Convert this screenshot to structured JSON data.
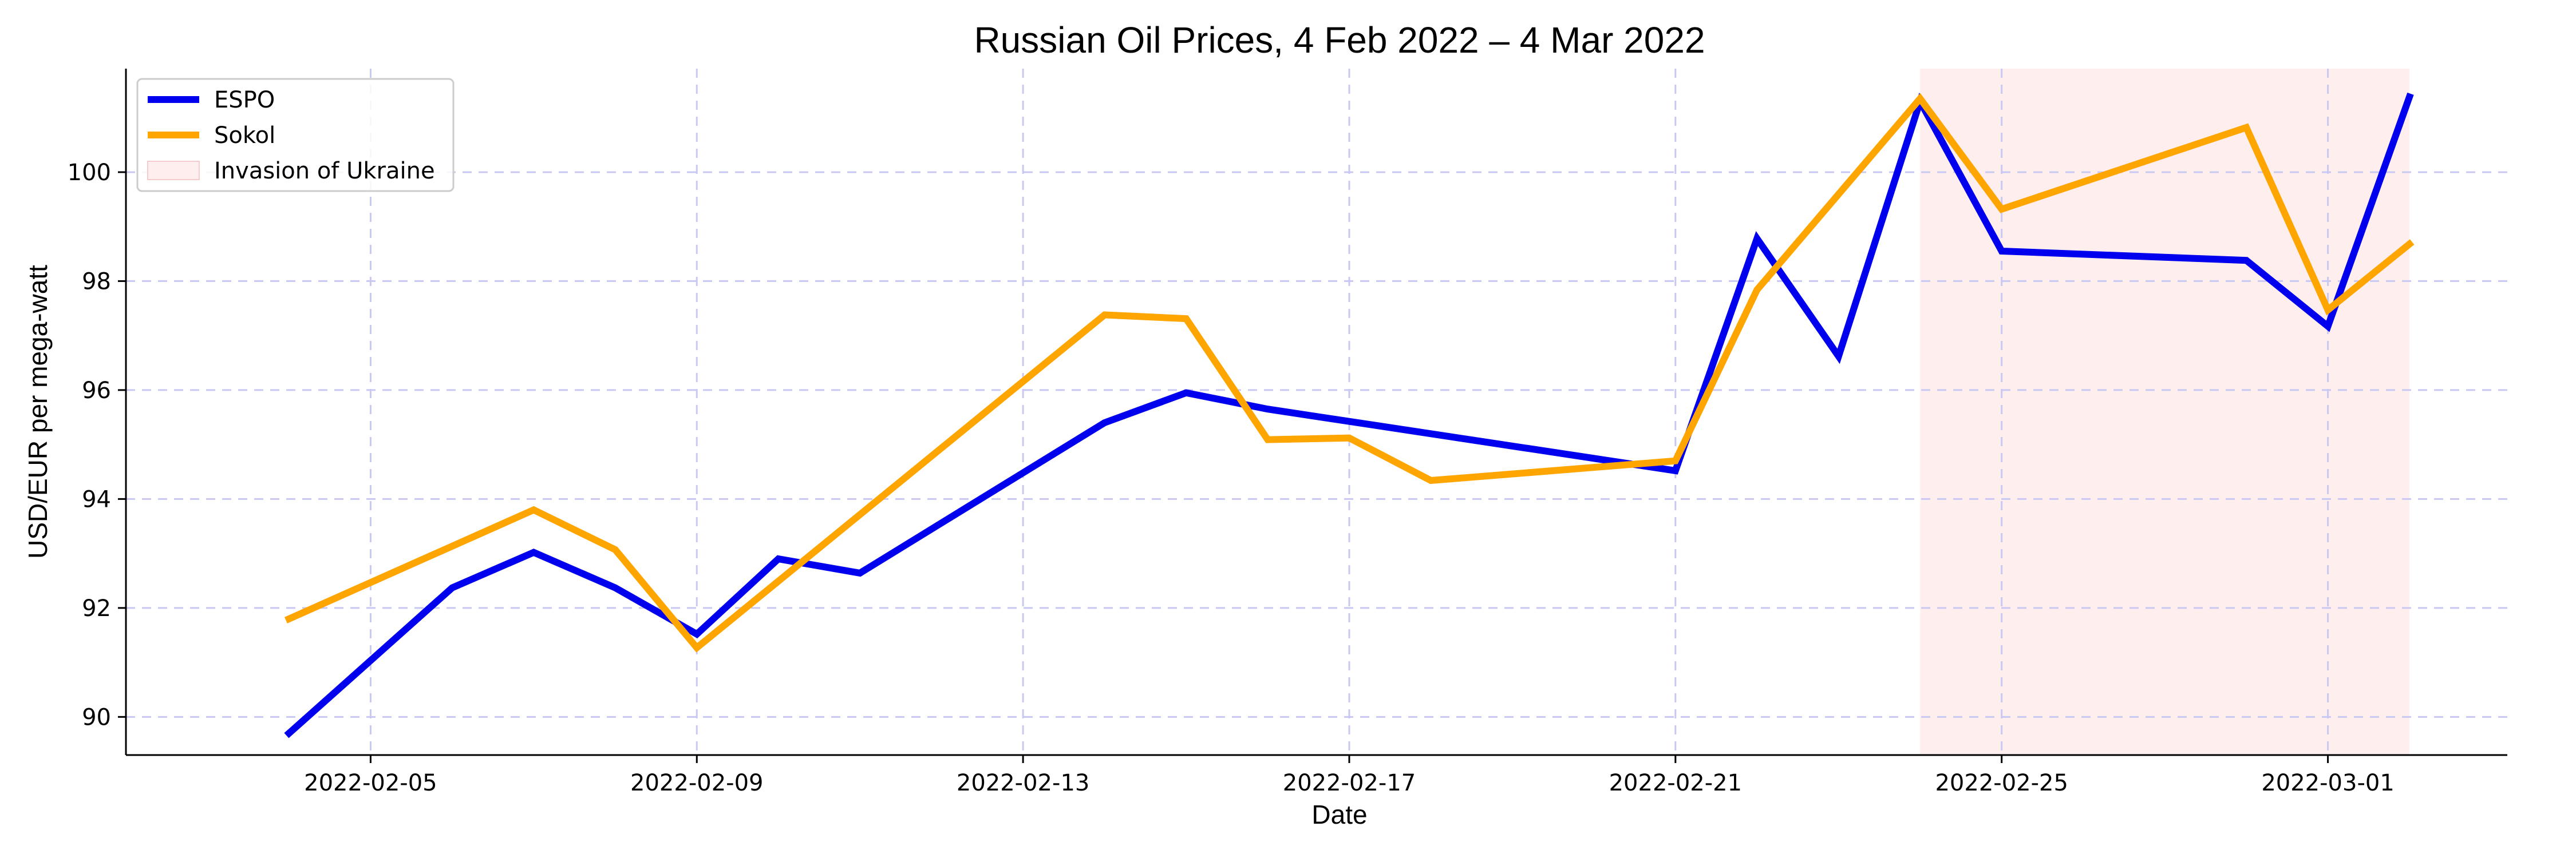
{
  "chart_data": {
    "type": "line",
    "title": "Russian Oil Prices, 4 Feb 2022 – 4 Mar 2022",
    "xlabel": "Date",
    "ylabel": "USD/EUR per mega-watt",
    "xlim": [
      "2022-02-04",
      "2022-03-02"
    ],
    "ylim": [
      89.3,
      101.9
    ],
    "x_ticks": [
      "2022-02-05",
      "2022-02-09",
      "2022-02-13",
      "2022-02-17",
      "2022-02-21",
      "2022-02-25",
      "2022-03-01"
    ],
    "y_ticks": [
      90,
      92,
      94,
      96,
      98,
      100
    ],
    "grid": true,
    "legend_position": "top-left",
    "shaded_region": {
      "label": "Invasion of Ukraine",
      "start": "2022-02-24",
      "end": "2022-03-02",
      "color": "#ffeeee"
    },
    "series": [
      {
        "name": "ESPO",
        "color": "#0000ee",
        "points": [
          {
            "x": "2022-02-04",
            "y": 89.7
          },
          {
            "x": "2022-02-06",
            "y": 92.37
          },
          {
            "x": "2022-02-07",
            "y": 93.02
          },
          {
            "x": "2022-02-08",
            "y": 92.37
          },
          {
            "x": "2022-02-09",
            "y": 91.52
          },
          {
            "x": "2022-02-10",
            "y": 92.9
          },
          {
            "x": "2022-02-11",
            "y": 92.64
          },
          {
            "x": "2022-02-14",
            "y": 95.4
          },
          {
            "x": "2022-02-15",
            "y": 95.95
          },
          {
            "x": "2022-02-16",
            "y": 95.65
          },
          {
            "x": "2022-02-21",
            "y": 94.52
          },
          {
            "x": "2022-02-22",
            "y": 98.78
          },
          {
            "x": "2022-02-23",
            "y": 96.62
          },
          {
            "x": "2022-02-24",
            "y": 101.3
          },
          {
            "x": "2022-02-25",
            "y": 98.55
          },
          {
            "x": "2022-02-28",
            "y": 98.38
          },
          {
            "x": "2022-03-01",
            "y": 97.17
          },
          {
            "x": "2022-03-02",
            "y": 101.38
          }
        ]
      },
      {
        "name": "Sokol",
        "color": "#ffa500",
        "points": [
          {
            "x": "2022-02-04",
            "y": 91.8
          },
          {
            "x": "2022-02-07",
            "y": 93.8
          },
          {
            "x": "2022-02-08",
            "y": 93.07
          },
          {
            "x": "2022-02-09",
            "y": 91.27
          },
          {
            "x": "2022-02-14",
            "y": 97.38
          },
          {
            "x": "2022-02-15",
            "y": 97.31
          },
          {
            "x": "2022-02-16",
            "y": 95.09
          },
          {
            "x": "2022-02-17",
            "y": 95.12
          },
          {
            "x": "2022-02-18",
            "y": 94.34
          },
          {
            "x": "2022-02-21",
            "y": 94.7
          },
          {
            "x": "2022-02-22",
            "y": 97.84
          },
          {
            "x": "2022-02-24",
            "y": 101.35
          },
          {
            "x": "2022-02-25",
            "y": 99.32
          },
          {
            "x": "2022-02-28",
            "y": 100.82
          },
          {
            "x": "2022-03-01",
            "y": 97.47
          },
          {
            "x": "2022-03-02",
            "y": 98.68
          }
        ]
      }
    ]
  }
}
